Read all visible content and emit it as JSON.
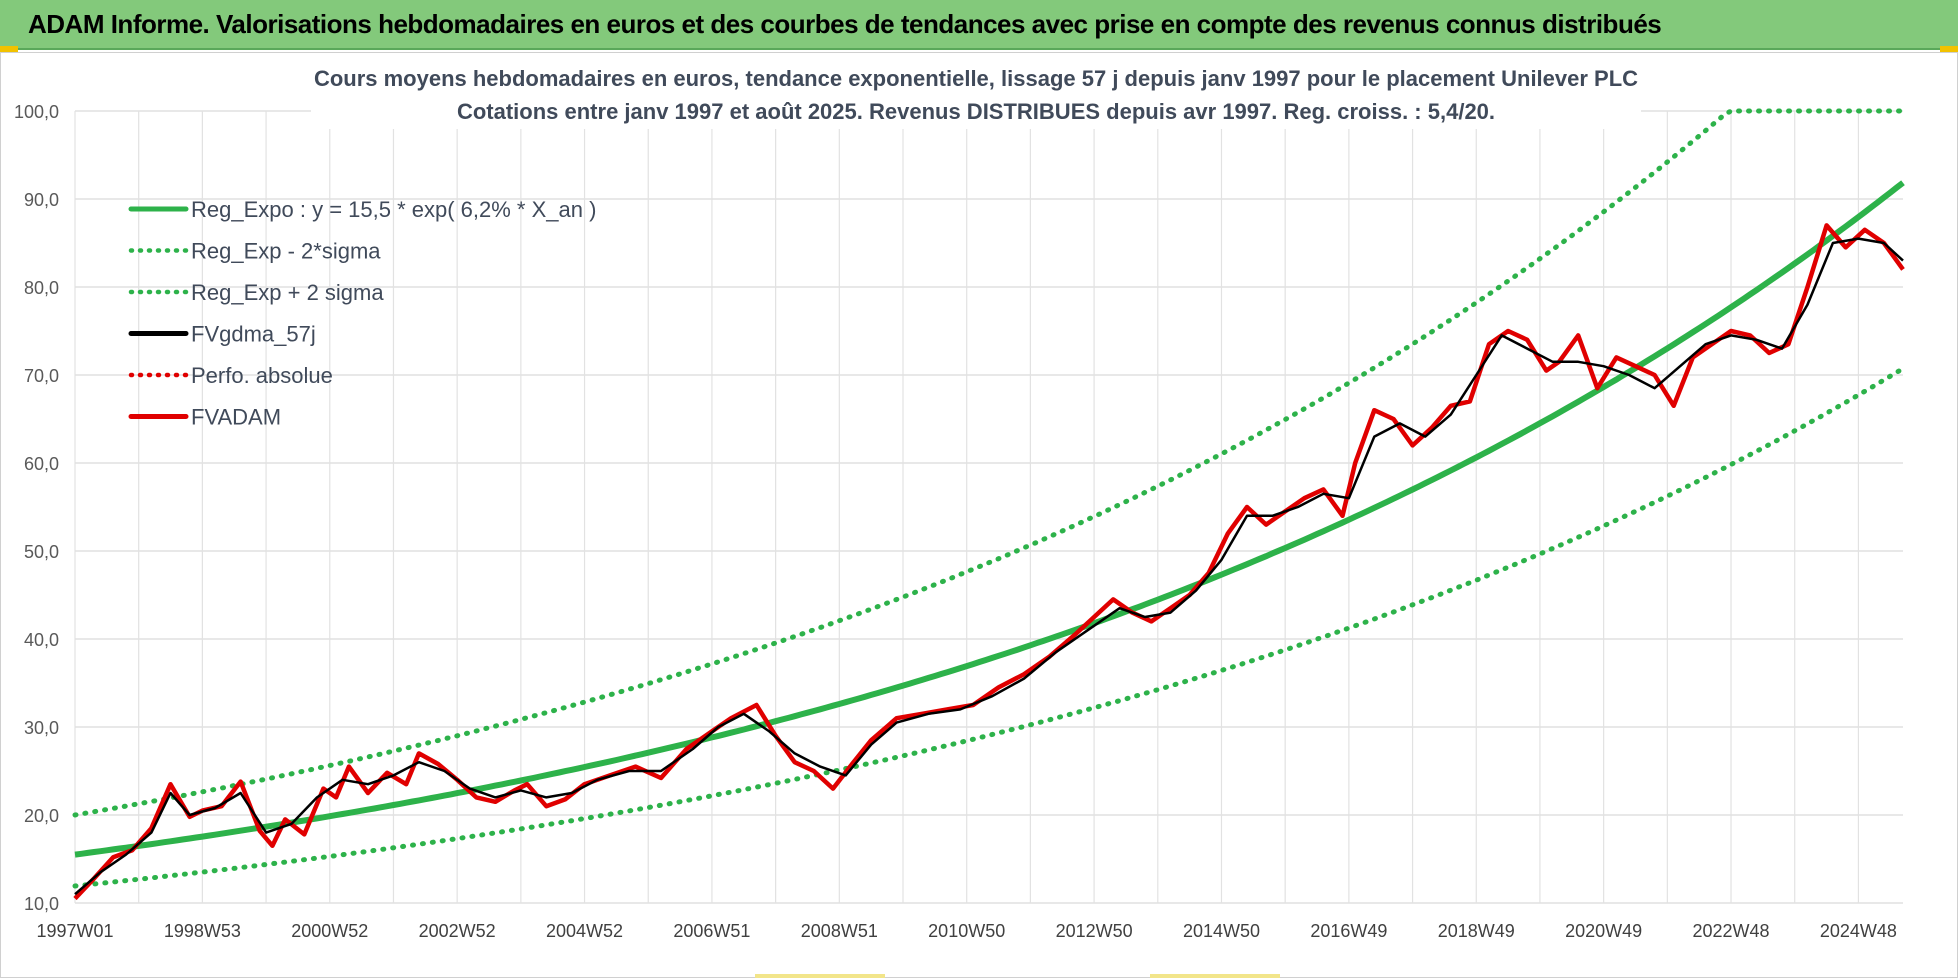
{
  "banner": {
    "title": "ADAM Informe. Valorisations hebdomadaires en euros et des courbes de tendances avec prise en compte des revenus connus distribués"
  },
  "chart_data": {
    "type": "line",
    "title_line1": "Cours moyens hebdomadaires en euros, tendance exponentielle, lissage 57 j depuis janv 1997  pour le placement Unilever PLC",
    "title_line2": "Cotations entre janv 1997 et août 2025. Revenus DISTRIBUES depuis avr 1997. Reg. croiss. : 5,4/20.",
    "ylim": [
      10,
      100
    ],
    "xlim": [
      1997.0,
      2025.7
    ],
    "y_ticks": [
      "10,0",
      "20,0",
      "30,0",
      "40,0",
      "50,0",
      "60,0",
      "70,0",
      "80,0",
      "90,0",
      "100,0"
    ],
    "x_ticks": [
      {
        "label": "1997W01",
        "t": 1997.0
      },
      {
        "label": "1998W53",
        "t": 1999.0
      },
      {
        "label": "2000W52",
        "t": 2001.0
      },
      {
        "label": "2002W52",
        "t": 2003.0
      },
      {
        "label": "2004W52",
        "t": 2005.0
      },
      {
        "label": "2006W51",
        "t": 2007.0
      },
      {
        "label": "2008W51",
        "t": 2009.0
      },
      {
        "label": "2010W50",
        "t": 2011.0
      },
      {
        "label": "2012W50",
        "t": 2013.0
      },
      {
        "label": "2014W50",
        "t": 2015.0
      },
      {
        "label": "2016W49",
        "t": 2017.0
      },
      {
        "label": "2018W49",
        "t": 2019.0
      },
      {
        "label": "2020W49",
        "t": 2021.0
      },
      {
        "label": "2022W48",
        "t": 2023.0
      },
      {
        "label": "2024W48",
        "t": 2025.0
      }
    ],
    "grid": true,
    "legend_position": "top-left",
    "legend": [
      {
        "label": "Reg_Expo : y = 15,5 * exp( 6,2% *  X_an )",
        "color": "#2db24a",
        "style": "solid"
      },
      {
        "label": "Reg_Exp - 2*sigma",
        "color": "#2db24a",
        "style": "dotted"
      },
      {
        "label": "Reg_Exp + 2 sigma",
        "color": "#2db24a",
        "style": "dotted"
      },
      {
        "label": "FVgdma_57j",
        "color": "#000000",
        "style": "solid"
      },
      {
        "label": "Perfo. absolue",
        "color": "#e00000",
        "style": "dotted"
      },
      {
        "label": "FVADAM",
        "color": "#e00000",
        "style": "solid"
      }
    ],
    "regression": {
      "a": 15.5,
      "rate": 0.062,
      "start": 1997.0,
      "lower_factor": 0.77,
      "upper_factor": 1.29
    },
    "series": [
      {
        "name": "FVADAM",
        "color": "#e00000",
        "x": [
          1997.0,
          1997.3,
          1997.6,
          1997.9,
          1998.2,
          1998.5,
          1998.8,
          1999.0,
          1999.3,
          1999.6,
          1999.9,
          2000.1,
          2000.3,
          2000.6,
          2000.9,
          2001.1,
          2001.3,
          2001.6,
          2001.9,
          2002.2,
          2002.4,
          2002.7,
          2003.0,
          2003.3,
          2003.6,
          2003.9,
          2004.1,
          2004.4,
          2004.7,
          2005.0,
          2005.4,
          2005.8,
          2006.2,
          2006.6,
          2007.0,
          2007.3,
          2007.7,
          2008.0,
          2008.3,
          2008.6,
          2008.9,
          2009.2,
          2009.5,
          2009.9,
          2010.3,
          2010.7,
          2011.1,
          2011.5,
          2011.9,
          2012.3,
          2012.7,
          2013.0,
          2013.3,
          2013.6,
          2013.9,
          2014.2,
          2014.5,
          2014.8,
          2015.1,
          2015.4,
          2015.7,
          2016.0,
          2016.3,
          2016.6,
          2016.9,
          2017.1,
          2017.4,
          2017.7,
          2018.0,
          2018.3,
          2018.6,
          2018.9,
          2019.2,
          2019.5,
          2019.8,
          2020.1,
          2020.3,
          2020.6,
          2020.9,
          2021.2,
          2021.5,
          2021.8,
          2022.1,
          2022.4,
          2022.7,
          2023.0,
          2023.3,
          2023.6,
          2023.9,
          2024.2,
          2024.5,
          2024.8,
          2025.1,
          2025.4,
          2025.7
        ],
        "y": [
          10.5,
          12.8,
          15.2,
          16.0,
          18.5,
          23.5,
          19.8,
          20.5,
          21.0,
          23.8,
          18.2,
          16.5,
          19.5,
          17.8,
          23.0,
          22.0,
          25.5,
          22.5,
          24.8,
          23.5,
          27.0,
          25.8,
          24.0,
          22.0,
          21.5,
          22.8,
          23.5,
          21.0,
          21.8,
          23.5,
          24.5,
          25.5,
          24.2,
          27.5,
          29.5,
          31.0,
          32.5,
          29.0,
          26.0,
          25.0,
          23.0,
          25.8,
          28.5,
          31.0,
          31.5,
          32.0,
          32.5,
          34.5,
          36.0,
          38.0,
          40.5,
          42.5,
          44.5,
          43.0,
          42.0,
          43.5,
          45.0,
          47.5,
          52.0,
          55.0,
          53.0,
          54.5,
          56.0,
          57.0,
          54.0,
          60.0,
          66.0,
          65.0,
          62.0,
          64.0,
          66.5,
          67.0,
          73.5,
          75.0,
          74.0,
          70.5,
          71.5,
          74.5,
          68.5,
          72.0,
          71.0,
          70.0,
          66.5,
          72.0,
          73.5,
          75.0,
          74.5,
          72.5,
          73.5,
          80.0,
          87.0,
          84.5,
          86.5,
          85.0,
          82.0
        ]
      },
      {
        "name": "FVgdma_57j",
        "color": "#000000",
        "x": [
          1997.0,
          1997.4,
          1997.8,
          1998.2,
          1998.5,
          1998.8,
          1999.2,
          1999.6,
          2000.0,
          2000.4,
          2000.8,
          2001.2,
          2001.6,
          2002.0,
          2002.4,
          2002.8,
          2003.2,
          2003.6,
          2004.0,
          2004.4,
          2004.8,
          2005.2,
          2005.7,
          2006.2,
          2006.7,
          2007.1,
          2007.5,
          2007.9,
          2008.3,
          2008.7,
          2009.1,
          2009.5,
          2009.9,
          2010.4,
          2010.9,
          2011.4,
          2011.9,
          2012.4,
          2012.9,
          2013.4,
          2013.8,
          2014.2,
          2014.6,
          2015.0,
          2015.4,
          2015.8,
          2016.2,
          2016.6,
          2017.0,
          2017.4,
          2017.8,
          2018.2,
          2018.6,
          2019.0,
          2019.4,
          2019.8,
          2020.2,
          2020.6,
          2021.0,
          2021.4,
          2021.8,
          2022.2,
          2022.6,
          2023.0,
          2023.4,
          2023.8,
          2024.2,
          2024.6,
          2025.0,
          2025.4,
          2025.7
        ],
        "y": [
          11.0,
          13.5,
          15.5,
          18.0,
          22.5,
          20.0,
          20.8,
          22.5,
          18.0,
          19.0,
          22.0,
          24.0,
          23.5,
          24.5,
          26.0,
          25.0,
          23.0,
          22.0,
          22.8,
          22.0,
          22.5,
          24.0,
          25.0,
          25.0,
          27.5,
          30.0,
          31.5,
          29.5,
          27.0,
          25.5,
          24.5,
          28.0,
          30.5,
          31.5,
          32.0,
          33.5,
          35.5,
          38.5,
          41.0,
          43.5,
          42.5,
          43.0,
          45.5,
          49.0,
          54.0,
          54.0,
          55.0,
          56.5,
          56.0,
          63.0,
          64.5,
          63.0,
          65.5,
          70.0,
          74.5,
          73.0,
          71.5,
          71.5,
          71.0,
          70.0,
          68.5,
          71.0,
          73.5,
          74.5,
          74.0,
          73.0,
          78.0,
          85.0,
          85.5,
          85.0,
          83.0
        ]
      }
    ]
  }
}
